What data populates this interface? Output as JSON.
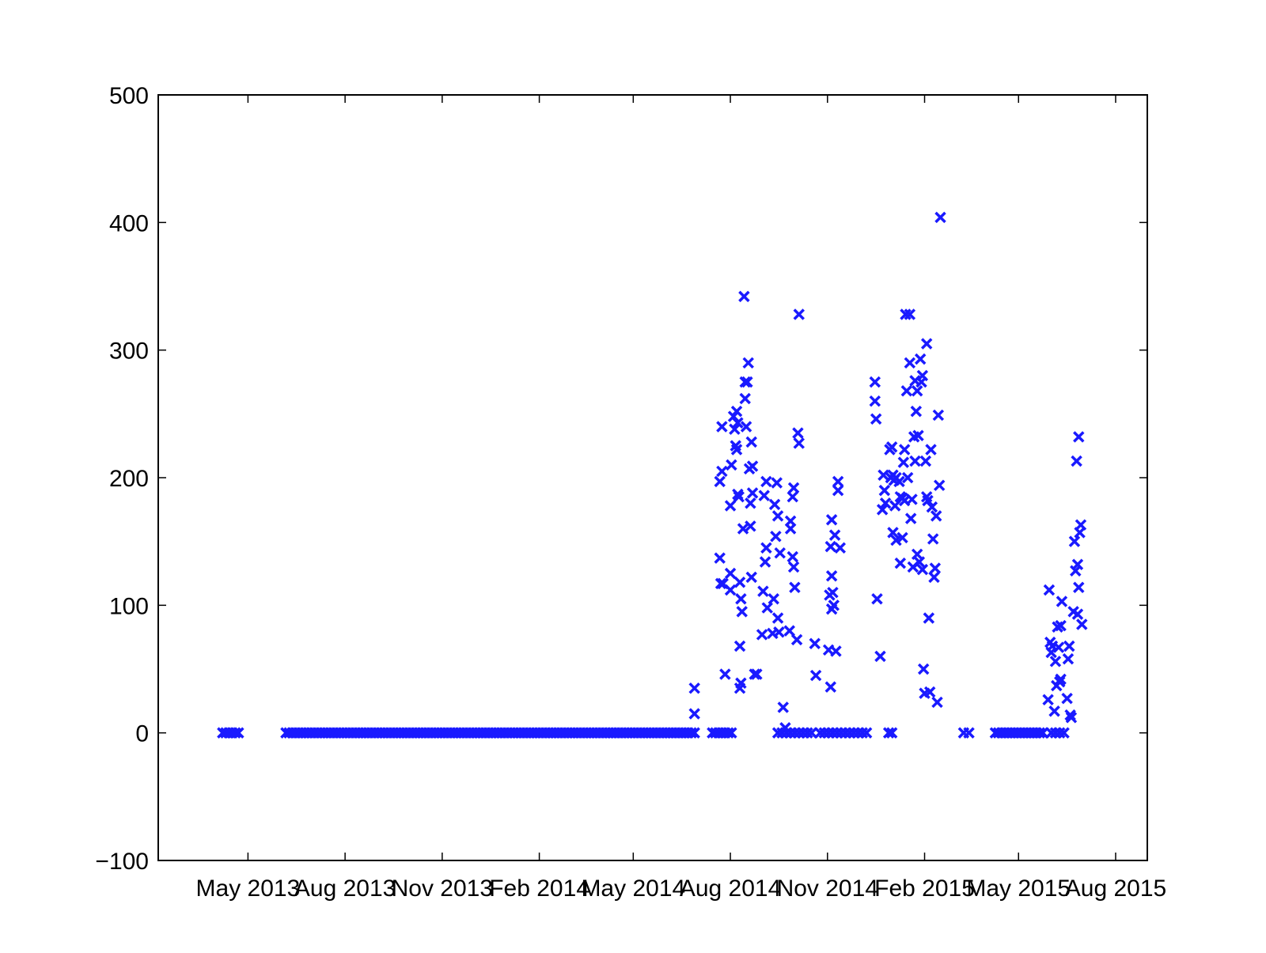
{
  "chart_data": {
    "type": "scatter",
    "title": "",
    "xlabel": "",
    "ylabel": "",
    "marker": "x",
    "marker_color": "#1a1aff",
    "axis_color": "#000000",
    "grid": false,
    "x_axis": {
      "kind": "date",
      "range": [
        "2013-02-05",
        "2015-08-31"
      ],
      "ticks": [
        {
          "date": "2013-05-01",
          "label": "May 2013"
        },
        {
          "date": "2013-08-01",
          "label": "Aug 2013"
        },
        {
          "date": "2013-11-01",
          "label": "Nov 2013"
        },
        {
          "date": "2014-02-01",
          "label": "Feb 2014"
        },
        {
          "date": "2014-05-01",
          "label": "May 2014"
        },
        {
          "date": "2014-08-01",
          "label": "Aug 2014"
        },
        {
          "date": "2014-11-01",
          "label": "Nov 2014"
        },
        {
          "date": "2015-02-01",
          "label": "Feb 2015"
        },
        {
          "date": "2015-05-01",
          "label": "May 2015"
        },
        {
          "date": "2015-08-01",
          "label": "Aug 2015"
        }
      ]
    },
    "y_axis": {
      "range": [
        -100,
        500
      ],
      "ticks": [
        {
          "value": -100,
          "label": "−100"
        },
        {
          "value": 0,
          "label": "0"
        },
        {
          "value": 100,
          "label": "100"
        },
        {
          "value": 200,
          "label": "200"
        },
        {
          "value": 300,
          "label": "300"
        },
        {
          "value": 400,
          "label": "400"
        },
        {
          "value": 500,
          "label": "500"
        }
      ]
    },
    "zero_runs": [
      {
        "start": "2013-04-07",
        "end": "2013-04-24",
        "step_days": 3
      },
      {
        "start": "2013-06-06",
        "end": "2014-06-28",
        "step_days": 3
      },
      {
        "start": "2014-07-15",
        "end": "2014-08-02",
        "step_days": 3
      },
      {
        "start": "2014-09-15",
        "end": "2014-10-17",
        "step_days": 4
      },
      {
        "start": "2014-10-25",
        "end": "2014-12-10",
        "step_days": 4
      },
      {
        "start": "2014-12-29",
        "end": "2015-01-01",
        "step_days": 3
      },
      {
        "start": "2015-03-10",
        "end": "2015-03-15",
        "step_days": 5
      },
      {
        "start": "2015-04-09",
        "end": "2015-05-24",
        "step_days": 3
      },
      {
        "start": "2015-06-01",
        "end": "2015-06-15",
        "step_days": 4
      }
    ],
    "points": [
      [
        "2014-06-28",
        35
      ],
      [
        "2014-06-28",
        15
      ],
      [
        "2014-07-22",
        137
      ],
      [
        "2014-07-22",
        197
      ],
      [
        "2014-07-24",
        240
      ],
      [
        "2014-07-24",
        205
      ],
      [
        "2014-07-23",
        117
      ],
      [
        "2014-07-25",
        117
      ],
      [
        "2014-07-27",
        46
      ],
      [
        "2014-08-01",
        178
      ],
      [
        "2014-08-01",
        125
      ],
      [
        "2014-08-01",
        112
      ],
      [
        "2014-08-02",
        210
      ],
      [
        "2014-08-04",
        248
      ],
      [
        "2014-08-05",
        238
      ],
      [
        "2014-08-07",
        252
      ],
      [
        "2014-08-08",
        243
      ],
      [
        "2014-08-06",
        225
      ],
      [
        "2014-08-07",
        222
      ],
      [
        "2014-08-08",
        187
      ],
      [
        "2014-08-09",
        185
      ],
      [
        "2014-08-10",
        118
      ],
      [
        "2014-08-11",
        105
      ],
      [
        "2014-08-11",
        39
      ],
      [
        "2014-08-12",
        95
      ],
      [
        "2014-08-13",
        160
      ],
      [
        "2014-08-14",
        342
      ],
      [
        "2014-08-15",
        275
      ],
      [
        "2014-08-15",
        262
      ],
      [
        "2014-08-16",
        240
      ],
      [
        "2014-08-17",
        275
      ],
      [
        "2014-08-18",
        290
      ],
      [
        "2014-08-19",
        207
      ],
      [
        "2014-08-20",
        180
      ],
      [
        "2014-08-20",
        162
      ],
      [
        "2014-08-21",
        228
      ],
      [
        "2014-08-22",
        209
      ],
      [
        "2014-08-22",
        188
      ],
      [
        "2014-08-21",
        122
      ],
      [
        "2014-08-10",
        68
      ],
      [
        "2014-08-10",
        35
      ],
      [
        "2014-08-24",
        46
      ],
      [
        "2014-08-26",
        46
      ],
      [
        "2014-08-31",
        77
      ],
      [
        "2014-09-01",
        111
      ],
      [
        "2014-09-03",
        134
      ],
      [
        "2014-09-04",
        145
      ],
      [
        "2014-09-02",
        186
      ],
      [
        "2014-09-04",
        197
      ],
      [
        "2014-09-05",
        98
      ],
      [
        "2014-09-11",
        105
      ],
      [
        "2014-09-12",
        179
      ],
      [
        "2014-09-13",
        154
      ],
      [
        "2014-09-14",
        196
      ],
      [
        "2014-09-15",
        170
      ],
      [
        "2014-09-15",
        90
      ],
      [
        "2014-09-16",
        79
      ],
      [
        "2014-09-17",
        141
      ],
      [
        "2014-09-10",
        78
      ],
      [
        "2014-09-20",
        20
      ],
      [
        "2014-09-22",
        4
      ],
      [
        "2014-09-26",
        80
      ],
      [
        "2014-09-27",
        166
      ],
      [
        "2014-09-27",
        160
      ],
      [
        "2014-09-29",
        185
      ],
      [
        "2014-09-30",
        192
      ],
      [
        "2014-09-29",
        138
      ],
      [
        "2014-09-30",
        130
      ],
      [
        "2014-10-01",
        114
      ],
      [
        "2014-10-03",
        73
      ],
      [
        "2014-10-04",
        235
      ],
      [
        "2014-10-05",
        227
      ],
      [
        "2014-10-05",
        328
      ],
      [
        "2014-10-20",
        70
      ],
      [
        "2014-10-21",
        45
      ],
      [
        "2014-11-02",
        65
      ],
      [
        "2014-11-03",
        108
      ],
      [
        "2014-11-04",
        146
      ],
      [
        "2014-11-05",
        167
      ],
      [
        "2014-11-05",
        123
      ],
      [
        "2014-11-06",
        110
      ],
      [
        "2014-11-05",
        97
      ],
      [
        "2014-11-07",
        100
      ],
      [
        "2014-11-08",
        155
      ],
      [
        "2014-11-09",
        64
      ],
      [
        "2014-11-04",
        36
      ],
      [
        "2014-11-11",
        197
      ],
      [
        "2014-11-11",
        190
      ],
      [
        "2014-11-13",
        145
      ],
      [
        "2014-12-16",
        275
      ],
      [
        "2014-12-16",
        260
      ],
      [
        "2014-12-17",
        246
      ],
      [
        "2014-12-18",
        105
      ],
      [
        "2014-12-21",
        60
      ],
      [
        "2014-12-23",
        175
      ],
      [
        "2014-12-24",
        202
      ],
      [
        "2014-12-25",
        190
      ],
      [
        "2014-12-26",
        180
      ],
      [
        "2014-12-30",
        222
      ],
      [
        "2014-12-31",
        200
      ],
      [
        "2015-01-01",
        224
      ],
      [
        "2015-01-02",
        202
      ],
      [
        "2015-01-03",
        198
      ],
      [
        "2015-01-04",
        178
      ],
      [
        "2015-01-05",
        200
      ],
      [
        "2015-01-02",
        157
      ],
      [
        "2015-01-05",
        151
      ],
      [
        "2015-01-08",
        197
      ],
      [
        "2015-01-09",
        185
      ],
      [
        "2015-01-09",
        133
      ],
      [
        "2015-01-11",
        153
      ],
      [
        "2015-01-11",
        184
      ],
      [
        "2015-01-12",
        212
      ],
      [
        "2015-01-13",
        222
      ],
      [
        "2015-01-13",
        182
      ],
      [
        "2015-01-14",
        328
      ],
      [
        "2015-01-15",
        268
      ],
      [
        "2015-01-16",
        200
      ],
      [
        "2015-01-18",
        290
      ],
      [
        "2015-01-18",
        328
      ],
      [
        "2015-01-19",
        168
      ],
      [
        "2015-01-20",
        183
      ],
      [
        "2015-01-21",
        130
      ],
      [
        "2015-01-22",
        232
      ],
      [
        "2015-01-23",
        213
      ],
      [
        "2015-01-23",
        276
      ],
      [
        "2015-01-24",
        252
      ],
      [
        "2015-01-25",
        268
      ],
      [
        "2015-01-25",
        140
      ],
      [
        "2015-01-26",
        233
      ],
      [
        "2015-01-27",
        134
      ],
      [
        "2015-01-28",
        293
      ],
      [
        "2015-01-29",
        275
      ],
      [
        "2015-01-30",
        280
      ],
      [
        "2015-01-30",
        128
      ],
      [
        "2015-01-31",
        50
      ],
      [
        "2015-02-01",
        31
      ],
      [
        "2015-02-02",
        213
      ],
      [
        "2015-02-03",
        305
      ],
      [
        "2015-02-03",
        185
      ],
      [
        "2015-02-04",
        182
      ],
      [
        "2015-02-05",
        90
      ],
      [
        "2015-02-06",
        32
      ],
      [
        "2015-02-07",
        222
      ],
      [
        "2015-02-08",
        177
      ],
      [
        "2015-02-09",
        152
      ],
      [
        "2015-02-10",
        122
      ],
      [
        "2015-02-11",
        129
      ],
      [
        "2015-02-12",
        170
      ],
      [
        "2015-02-13",
        24
      ],
      [
        "2015-02-14",
        249
      ],
      [
        "2015-02-15",
        194
      ],
      [
        "2015-02-16",
        404
      ],
      [
        "2015-05-29",
        26
      ],
      [
        "2015-05-30",
        112
      ],
      [
        "2015-05-31",
        71
      ],
      [
        "2015-06-01",
        63
      ],
      [
        "2015-06-02",
        68
      ],
      [
        "2015-06-04",
        17
      ],
      [
        "2015-06-05",
        56
      ],
      [
        "2015-06-06",
        37
      ],
      [
        "2015-06-07",
        83
      ],
      [
        "2015-06-08",
        67
      ],
      [
        "2015-06-09",
        40
      ],
      [
        "2015-06-10",
        84
      ],
      [
        "2015-06-10",
        42
      ],
      [
        "2015-06-11",
        103
      ],
      [
        "2015-06-16",
        27
      ],
      [
        "2015-06-17",
        58
      ],
      [
        "2015-06-18",
        68
      ],
      [
        "2015-06-19",
        14
      ],
      [
        "2015-06-20",
        12
      ],
      [
        "2015-06-22",
        95
      ],
      [
        "2015-06-23",
        150
      ],
      [
        "2015-06-24",
        127
      ],
      [
        "2015-06-25",
        213
      ],
      [
        "2015-06-26",
        132
      ],
      [
        "2015-06-26",
        93
      ],
      [
        "2015-06-27",
        114
      ],
      [
        "2015-06-27",
        232
      ],
      [
        "2015-06-28",
        157
      ],
      [
        "2015-06-29",
        163
      ],
      [
        "2015-06-30",
        85
      ]
    ]
  }
}
